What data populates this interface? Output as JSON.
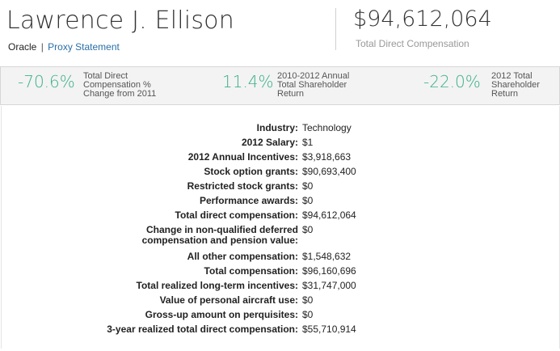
{
  "header": {
    "name": "Lawrence J. Ellison",
    "company": "Oracle",
    "separator": "|",
    "proxy_link": "Proxy Statement",
    "total": "$94,612,064",
    "total_label": "Total Direct Compensation"
  },
  "stats": [
    {
      "value": "-70.6%",
      "label": "Total Direct Compensation % Change from 2011"
    },
    {
      "value": "11.4%",
      "label": "2010-2012 Annual Total Shareholder Return"
    },
    {
      "value": "-22.0%",
      "label": "2012 Total Shareholder Return"
    }
  ],
  "details": [
    {
      "key": "Industry:",
      "value": "Technology"
    },
    {
      "key": "2012 Salary:",
      "value": "$1"
    },
    {
      "key": "2012 Annual Incentives:",
      "value": "$3,918,663"
    },
    {
      "key": "Stock option grants:",
      "value": "$90,693,400"
    },
    {
      "key": "Restricted stock grants:",
      "value": "$0"
    },
    {
      "key": "Performance awards:",
      "value": "$0"
    },
    {
      "key": "Total direct compensation:",
      "value": "$94,612,064"
    },
    {
      "key": "Change in non-qualified deferred compensation and pension value:",
      "value": "$0"
    },
    {
      "key": "All other compensation:",
      "value": "$1,548,632"
    },
    {
      "key": "Total compensation:",
      "value": "$96,160,696"
    },
    {
      "key": "Total realized long-term incentives:",
      "value": "$31,747,000"
    },
    {
      "key": "Value of personal aircraft use:",
      "value": "$0"
    },
    {
      "key": "Gross-up amount on perquisites:",
      "value": "$0"
    },
    {
      "key": "3-year realized total direct compensation:",
      "value": "$55,710,914"
    }
  ]
}
